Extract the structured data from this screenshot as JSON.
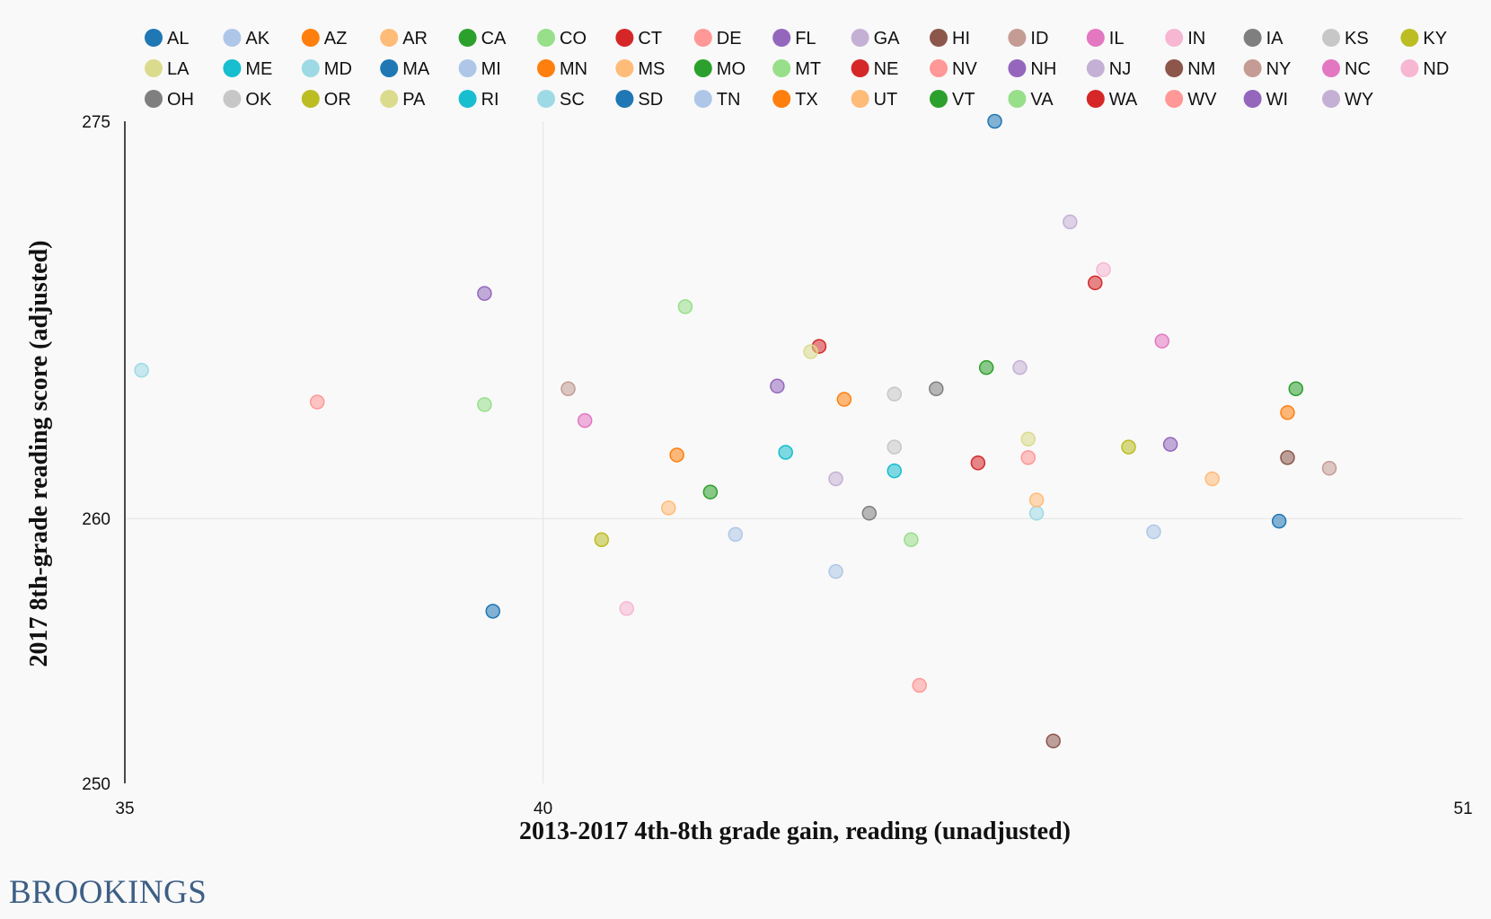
{
  "chart_data": {
    "type": "scatter",
    "xlabel": "2013-2017 4th-8th grade gain, reading (unadjusted)",
    "ylabel": "2017 8th-grade reading score (adjusted)",
    "xlim": [
      35,
      51
    ],
    "ylim": [
      250,
      275
    ],
    "xticks": [
      "35",
      "40",
      "51"
    ],
    "yticks": [
      "275",
      "260",
      "250"
    ],
    "xtick_values": [
      35,
      40,
      51
    ],
    "ytick_values": [
      275,
      260,
      250
    ],
    "grid": {
      "vertical_at": 40,
      "horizontal_at": 260
    },
    "legend_placement": "top",
    "series": [
      {
        "name": "AL",
        "color": "#1f77b4",
        "x": 45.4,
        "y": 275.0
      },
      {
        "name": "AK",
        "color": "#aec7e8",
        "x": 43.5,
        "y": 258.0
      },
      {
        "name": "AZ",
        "color": "#ff7f0e",
        "x": 41.6,
        "y": 262.4
      },
      {
        "name": "AR",
        "color": "#ffbb78",
        "x": 41.5,
        "y": 260.4
      },
      {
        "name": "CA",
        "color": "#2ca02c",
        "x": 42.0,
        "y": 261.0
      },
      {
        "name": "CO",
        "color": "#98df8a",
        "x": 41.7,
        "y": 268.0
      },
      {
        "name": "CT",
        "color": "#d62728",
        "x": 43.3,
        "y": 266.5
      },
      {
        "name": "DE",
        "color": "#ff9896",
        "x": 44.5,
        "y": 253.7
      },
      {
        "name": "FL",
        "color": "#9467bd",
        "x": 42.8,
        "y": 265.0
      },
      {
        "name": "GA",
        "color": "#c5b0d5",
        "x": 46.3,
        "y": 271.2
      },
      {
        "name": "HI",
        "color": "#8c564b",
        "x": 46.1,
        "y": 251.6
      },
      {
        "name": "ID",
        "color": "#c49c94",
        "x": 40.3,
        "y": 264.9
      },
      {
        "name": "IL",
        "color": "#e377c2",
        "x": 47.4,
        "y": 266.7
      },
      {
        "name": "IN",
        "color": "#f7b6d2",
        "x": 46.7,
        "y": 269.4
      },
      {
        "name": "IA",
        "color": "#7f7f7f",
        "x": 44.7,
        "y": 264.9
      },
      {
        "name": "KS",
        "color": "#c7c7c7",
        "x": 44.2,
        "y": 262.7
      },
      {
        "name": "KY",
        "color": "#bcbd22",
        "x": 47.0,
        "y": 262.7
      },
      {
        "name": "LA",
        "color": "#dbdb8d",
        "x": 43.2,
        "y": 266.3
      },
      {
        "name": "ME",
        "color": "#17becf",
        "x": 42.9,
        "y": 262.5
      },
      {
        "name": "MD",
        "color": "#9edae5",
        "x": 35.2,
        "y": 265.6
      },
      {
        "name": "MA",
        "color": "#1f77b4",
        "x": 48.8,
        "y": 259.9
      },
      {
        "name": "MI",
        "color": "#aec7e8",
        "x": 47.3,
        "y": 259.5
      },
      {
        "name": "MN",
        "color": "#ff7f0e",
        "x": 43.6,
        "y": 264.5
      },
      {
        "name": "MS",
        "color": "#ffbb78",
        "x": 48.0,
        "y": 261.5
      },
      {
        "name": "MO",
        "color": "#2ca02c",
        "x": 45.3,
        "y": 265.7
      },
      {
        "name": "MT",
        "color": "#98df8a",
        "x": 44.4,
        "y": 259.2
      },
      {
        "name": "NE",
        "color": "#d62728",
        "x": 45.2,
        "y": 262.1
      },
      {
        "name": "NV",
        "color": "#ff9896",
        "x": 37.3,
        "y": 264.4
      },
      {
        "name": "NH",
        "color": "#9467bd",
        "x": 39.3,
        "y": 268.5
      },
      {
        "name": "NJ",
        "color": "#c5b0d5",
        "x": 43.5,
        "y": 261.5
      },
      {
        "name": "NM",
        "color": "#8c564b",
        "x": 48.9,
        "y": 262.3
      },
      {
        "name": "NY",
        "color": "#c49c94",
        "x": 49.4,
        "y": 261.9
      },
      {
        "name": "NC",
        "color": "#e377c2",
        "x": 40.5,
        "y": 263.7
      },
      {
        "name": "ND",
        "color": "#f7b6d2",
        "x": 41.0,
        "y": 256.6
      },
      {
        "name": "OH",
        "color": "#7f7f7f",
        "x": 43.9,
        "y": 260.2
      },
      {
        "name": "OK",
        "color": "#c7c7c7",
        "x": 44.2,
        "y": 264.7
      },
      {
        "name": "OR",
        "color": "#bcbd22",
        "x": 40.7,
        "y": 259.2
      },
      {
        "name": "PA",
        "color": "#dbdb8d",
        "x": 45.8,
        "y": 263.0
      },
      {
        "name": "RI",
        "color": "#17becf",
        "x": 44.2,
        "y": 261.8
      },
      {
        "name": "SC",
        "color": "#9edae5",
        "x": 45.9,
        "y": 260.2
      },
      {
        "name": "SD",
        "color": "#1f77b4",
        "x": 39.4,
        "y": 256.5
      },
      {
        "name": "TN",
        "color": "#aec7e8",
        "x": 42.3,
        "y": 259.4
      },
      {
        "name": "TX",
        "color": "#ff7f0e",
        "x": 48.9,
        "y": 264.0
      },
      {
        "name": "UT",
        "color": "#ffbb78",
        "x": 45.9,
        "y": 260.7
      },
      {
        "name": "VT",
        "color": "#2ca02c",
        "x": 49.0,
        "y": 264.9
      },
      {
        "name": "VA",
        "color": "#98df8a",
        "x": 39.3,
        "y": 264.3
      },
      {
        "name": "WA",
        "color": "#d62728",
        "x": 46.6,
        "y": 268.9
      },
      {
        "name": "WV",
        "color": "#ff9896",
        "x": 45.8,
        "y": 262.3
      },
      {
        "name": "WI",
        "color": "#9467bd",
        "x": 47.5,
        "y": 262.8
      },
      {
        "name": "WY",
        "color": "#c5b0d5",
        "x": 45.7,
        "y": 265.7
      }
    ]
  },
  "brand": {
    "name": "BROOKINGS",
    "color": "#3d5f85"
  }
}
